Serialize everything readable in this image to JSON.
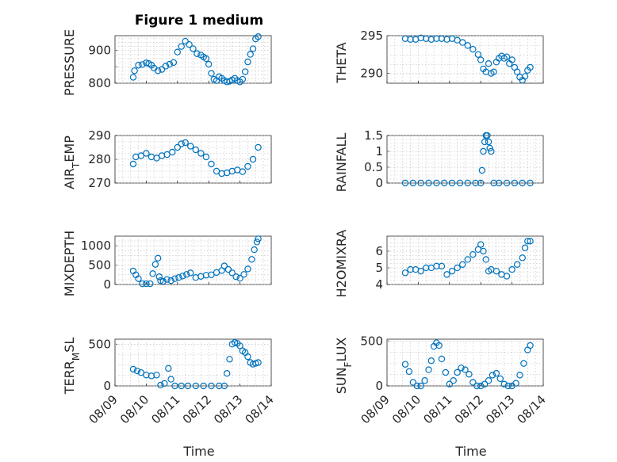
{
  "figure_title": "Figure 1 medium",
  "colors": {
    "marker": "#0072BD",
    "axes": "#262626",
    "grid": "#bdbdbd"
  },
  "chart_data": [
    {
      "type": "scatter",
      "ylabel": "PRESSURE",
      "ylim": [
        800,
        945
      ],
      "yticks": [
        800,
        850,
        900
      ],
      "ytick_labels": [
        "800",
        "",
        "900"
      ],
      "x_date_ticks": [
        "08/09",
        "08/10",
        "08/11",
        "08/12",
        "08/13",
        "08/14"
      ],
      "show_x_ticklabels": false,
      "x": [
        "08/09 14:00",
        "08/09 15:00",
        "08/09 18:00",
        "08/09 21:00",
        "08/10 00:00",
        "08/10 02:00",
        "08/10 04:00",
        "08/10 06:00",
        "08/10 09:00",
        "08/10 12:00",
        "08/10 15:00",
        "08/10 18:00",
        "08/10 21:00",
        "08/11 00:00",
        "08/11 03:00",
        "08/11 06:00",
        "08/11 09:00",
        "08/11 12:00",
        "08/11 15:00",
        "08/11 18:00",
        "08/11 20:00",
        "08/11 22:00",
        "08/12 00:00",
        "08/12 02:00",
        "08/12 04:00",
        "08/12 06:00",
        "08/12 08:00",
        "08/12 10:00",
        "08/12 12:00",
        "08/12 14:00",
        "08/12 16:00",
        "08/12 18:00",
        "08/12 20:00",
        "08/12 22:00",
        "08/13 00:00",
        "08/13 02:00",
        "08/13 04:00",
        "08/13 06:00",
        "08/13 08:00",
        "08/13 10:00",
        "08/13 12:00",
        "08/13 14:00"
      ],
      "y": [
        818,
        838,
        855,
        857,
        862,
        860,
        855,
        846,
        838,
        842,
        852,
        858,
        863,
        895,
        912,
        928,
        918,
        905,
        890,
        886,
        880,
        875,
        858,
        830,
        812,
        808,
        820,
        815,
        808,
        804,
        806,
        810,
        815,
        808,
        804,
        812,
        835,
        865,
        888,
        905,
        935,
        942
      ]
    },
    {
      "type": "scatter",
      "ylabel": "THETA",
      "ylim": [
        288.7,
        295
      ],
      "yticks": [
        290,
        295
      ],
      "ytick_labels": [
        "290",
        "295"
      ],
      "x_date_ticks": [
        "08/09",
        "08/10",
        "08/11",
        "08/12",
        "08/13",
        "08/14"
      ],
      "show_x_ticklabels": false,
      "x": [
        "08/09 14:00",
        "08/09 18:00",
        "08/09 22:00",
        "08/10 02:00",
        "08/10 06:00",
        "08/10 10:00",
        "08/10 14:00",
        "08/10 18:00",
        "08/10 22:00",
        "08/11 02:00",
        "08/11 06:00",
        "08/11 10:00",
        "08/11 14:00",
        "08/11 18:00",
        "08/11 22:00",
        "08/12 00:00",
        "08/12 02:00",
        "08/12 04:00",
        "08/12 06:00",
        "08/12 08:00",
        "08/12 10:00",
        "08/12 12:00",
        "08/12 14:00",
        "08/12 16:00",
        "08/12 18:00",
        "08/12 20:00",
        "08/12 22:00",
        "08/13 00:00",
        "08/13 02:00",
        "08/13 04:00",
        "08/13 06:00",
        "08/13 08:00",
        "08/13 10:00",
        "08/13 12:00",
        "08/13 14:00"
      ],
      "y": [
        294.6,
        294.5,
        294.5,
        294.7,
        294.6,
        294.5,
        294.6,
        294.6,
        294.5,
        294.6,
        294.4,
        294.1,
        293.7,
        293.2,
        292.5,
        291.8,
        290.6,
        290.2,
        291.3,
        290.0,
        290.2,
        291.5,
        292.0,
        292.3,
        292.0,
        292.2,
        291.3,
        291.8,
        290.8,
        290.2,
        289.5,
        289.1,
        289.6,
        290.4,
        290.8
      ]
    },
    {
      "type": "scatter",
      "ylabel": "AIR_TEMP",
      "ylim": [
        270,
        290
      ],
      "yticks": [
        270,
        280,
        290
      ],
      "ytick_labels": [
        "270",
        "280",
        "290"
      ],
      "x_date_ticks": [
        "08/09",
        "08/10",
        "08/11",
        "08/12",
        "08/13",
        "08/14"
      ],
      "show_x_ticklabels": false,
      "x": [
        "08/09 14:00",
        "08/09 16:00",
        "08/09 20:00",
        "08/10 00:00",
        "08/10 04:00",
        "08/10 08:00",
        "08/10 12:00",
        "08/10 16:00",
        "08/10 20:00",
        "08/11 00:00",
        "08/11 03:00",
        "08/11 06:00",
        "08/11 10:00",
        "08/11 14:00",
        "08/11 18:00",
        "08/11 22:00",
        "08/12 02:00",
        "08/12 06:00",
        "08/12 10:00",
        "08/12 14:00",
        "08/12 18:00",
        "08/12 22:00",
        "08/13 02:00",
        "08/13 06:00",
        "08/13 10:00",
        "08/13 14:00"
      ],
      "y": [
        278,
        281,
        281.5,
        282.5,
        281,
        280.5,
        281.5,
        282,
        283,
        285,
        286.5,
        287,
        285.5,
        284,
        282.5,
        281,
        278,
        275,
        274,
        274.3,
        275,
        275.5,
        274.8,
        277,
        280,
        285
      ]
    },
    {
      "type": "scatter",
      "ylabel": "RAINFALL",
      "ylim": [
        0,
        1.5
      ],
      "yticks": [
        0,
        0.5,
        1,
        1.5
      ],
      "ytick_labels": [
        "0",
        "0.5",
        "1",
        "1.5"
      ],
      "x_date_ticks": [
        "08/09",
        "08/10",
        "08/11",
        "08/12",
        "08/13",
        "08/14"
      ],
      "show_x_ticklabels": false,
      "x": [
        "08/09 14:00",
        "08/09 20:00",
        "08/10 02:00",
        "08/10 08:00",
        "08/10 14:00",
        "08/10 20:00",
        "08/11 02:00",
        "08/11 08:00",
        "08/11 14:00",
        "08/11 20:00",
        "08/12 00:00",
        "08/12 01:00",
        "08/12 02:00",
        "08/12 03:00",
        "08/12 04:00",
        "08/12 05:00",
        "08/12 06:00",
        "08/12 07:00",
        "08/12 08:00",
        "08/12 10:00",
        "08/12 14:00",
        "08/12 20:00",
        "08/13 02:00",
        "08/13 08:00",
        "08/13 14:00"
      ],
      "y": [
        0,
        0,
        0,
        0,
        0,
        0,
        0,
        0,
        0,
        0,
        0,
        0.4,
        1.0,
        1.3,
        1.5,
        1.5,
        1.3,
        1.1,
        1.0,
        0,
        0,
        0,
        0,
        0,
        0
      ]
    },
    {
      "type": "scatter",
      "ylabel": "MIXDEPTH",
      "ylim": [
        0,
        1250
      ],
      "yticks": [
        0,
        500,
        1000
      ],
      "ytick_labels": [
        "0",
        "500",
        "1000"
      ],
      "x_date_ticks": [
        "08/09",
        "08/10",
        "08/11",
        "08/12",
        "08/13",
        "08/14"
      ],
      "show_x_ticklabels": false,
      "x": [
        "08/09 14:00",
        "08/09 16:00",
        "08/09 18:00",
        "08/09 21:00",
        "08/10 00:00",
        "08/10 03:00",
        "08/10 05:00",
        "08/10 07:00",
        "08/10 09:00",
        "08/10 10:00",
        "08/10 11:00",
        "08/10 13:00",
        "08/10 16:00",
        "08/10 19:00",
        "08/10 22:00",
        "08/11 01:00",
        "08/11 04:00",
        "08/11 07:00",
        "08/11 10:00",
        "08/11 14:00",
        "08/11 18:00",
        "08/11 22:00",
        "08/12 02:00",
        "08/12 06:00",
        "08/12 10:00",
        "08/12 12:00",
        "08/12 15:00",
        "08/12 18:00",
        "08/12 21:00",
        "08/13 00:00",
        "08/13 03:00",
        "08/13 06:00",
        "08/13 09:00",
        "08/13 11:00",
        "08/13 13:00",
        "08/13 14:00"
      ],
      "y": [
        350,
        250,
        150,
        20,
        20,
        20,
        280,
        520,
        680,
        200,
        100,
        80,
        130,
        100,
        150,
        180,
        220,
        260,
        300,
        180,
        210,
        240,
        250,
        310,
        360,
        480,
        390,
        300,
        200,
        160,
        260,
        400,
        650,
        900,
        1100,
        1180
      ]
    },
    {
      "type": "scatter",
      "ylabel": "H2OMIXRA",
      "ylim": [
        4,
        6.9
      ],
      "yticks": [
        4,
        5,
        6
      ],
      "ytick_labels": [
        "4",
        "5",
        "6"
      ],
      "x_date_ticks": [
        "08/09",
        "08/10",
        "08/11",
        "08/12",
        "08/13",
        "08/14"
      ],
      "show_x_ticklabels": false,
      "x": [
        "08/09 14:00",
        "08/09 18:00",
        "08/09 22:00",
        "08/10 02:00",
        "08/10 06:00",
        "08/10 10:00",
        "08/10 14:00",
        "08/10 18:00",
        "08/10 22:00",
        "08/11 02:00",
        "08/11 06:00",
        "08/11 10:00",
        "08/11 14:00",
        "08/11 18:00",
        "08/11 22:00",
        "08/12 00:00",
        "08/12 02:00",
        "08/12 04:00",
        "08/12 06:00",
        "08/12 08:00",
        "08/12 12:00",
        "08/12 16:00",
        "08/12 20:00",
        "08/13 00:00",
        "08/13 04:00",
        "08/13 08:00",
        "08/13 10:00",
        "08/13 12:00",
        "08/13 14:00"
      ],
      "y": [
        4.7,
        4.9,
        4.9,
        4.8,
        5.0,
        5.0,
        5.1,
        5.1,
        4.6,
        4.8,
        5.0,
        5.2,
        5.5,
        5.8,
        6.1,
        6.4,
        6.0,
        5.5,
        4.8,
        4.9,
        4.8,
        4.6,
        4.5,
        4.9,
        5.2,
        5.6,
        6.2,
        6.6,
        6.6
      ]
    },
    {
      "type": "scatter",
      "ylabel": "TERR_MSL",
      "ylim": [
        0,
        560
      ],
      "yticks": [
        0,
        500
      ],
      "ytick_labels": [
        "0",
        "500"
      ],
      "x_date_ticks": [
        "08/09",
        "08/10",
        "08/11",
        "08/12",
        "08/13",
        "08/14"
      ],
      "show_x_ticklabels": false,
      "x": [
        "08/09 14:00",
        "08/09 17:00",
        "08/09 20:00",
        "08/10 00:00",
        "08/10 04:00",
        "08/10 08:00",
        "08/10 11:00",
        "08/10 14:00",
        "08/10 17:00",
        "08/10 19:00",
        "08/10 22:00",
        "08/11 03:00",
        "08/11 08:00",
        "08/11 14:00",
        "08/11 20:00",
        "08/12 02:00",
        "08/12 08:00",
        "08/12 12:00",
        "08/12 14:00",
        "08/12 16:00",
        "08/12 18:00",
        "08/12 20:00",
        "08/12 22:00",
        "08/13 00:00",
        "08/13 02:00",
        "08/13 04:00",
        "08/13 06:00",
        "08/13 08:00",
        "08/13 10:00",
        "08/13 12:00",
        "08/13 14:00"
      ],
      "y": [
        200,
        180,
        160,
        130,
        120,
        130,
        10,
        30,
        210,
        80,
        0,
        0,
        0,
        0,
        0,
        0,
        0,
        0,
        150,
        320,
        500,
        520,
        510,
        480,
        420,
        400,
        350,
        280,
        260,
        270,
        280
      ]
    },
    {
      "type": "scatter",
      "ylabel": "SUN_FLUX",
      "ylim": [
        0,
        520
      ],
      "yticks": [
        0,
        500
      ],
      "ytick_labels": [
        "0",
        "500"
      ],
      "x_date_ticks": [
        "08/09",
        "08/10",
        "08/11",
        "08/12",
        "08/13",
        "08/14"
      ],
      "show_x_ticklabels": true,
      "xlabel": "Time",
      "x": [
        "08/09 14:00",
        "08/09 17:00",
        "08/09 20:00",
        "08/09 23:00",
        "08/10 02:00",
        "08/10 05:00",
        "08/10 08:00",
        "08/10 10:00",
        "08/10 12:00",
        "08/10 14:00",
        "08/10 16:00",
        "08/10 18:00",
        "08/10 21:00",
        "08/11 00:00",
        "08/11 03:00",
        "08/11 06:00",
        "08/11 09:00",
        "08/11 12:00",
        "08/11 15:00",
        "08/11 18:00",
        "08/11 21:00",
        "08/12 00:00",
        "08/12 03:00",
        "08/12 06:00",
        "08/12 09:00",
        "08/12 12:00",
        "08/12 15:00",
        "08/12 18:00",
        "08/12 21:00",
        "08/13 00:00",
        "08/13 03:00",
        "08/13 06:00",
        "08/13 09:00",
        "08/13 12:00",
        "08/13 14:00"
      ],
      "y": [
        240,
        160,
        40,
        0,
        0,
        60,
        180,
        280,
        440,
        480,
        450,
        300,
        150,
        20,
        60,
        150,
        200,
        180,
        130,
        40,
        0,
        0,
        20,
        60,
        120,
        140,
        80,
        20,
        0,
        0,
        30,
        120,
        250,
        400,
        450
      ]
    }
  ],
  "left_xlabel": "Time",
  "ylabel_parts": [
    {
      "base": "PRESSURE",
      "sub": "",
      "rest": ""
    },
    {
      "base": "THETA",
      "sub": "",
      "rest": ""
    },
    {
      "base": "AIR",
      "sub": "T",
      "rest": "EMP"
    },
    {
      "base": "RAINFALL",
      "sub": "",
      "rest": ""
    },
    {
      "base": "MIXDEPTH",
      "sub": "",
      "rest": ""
    },
    {
      "base": "H2OMIXRA",
      "sub": "",
      "rest": ""
    },
    {
      "base": "TERR",
      "sub": "M",
      "rest": "SL"
    },
    {
      "base": "SUN",
      "sub": "F",
      "rest": "LUX"
    }
  ]
}
